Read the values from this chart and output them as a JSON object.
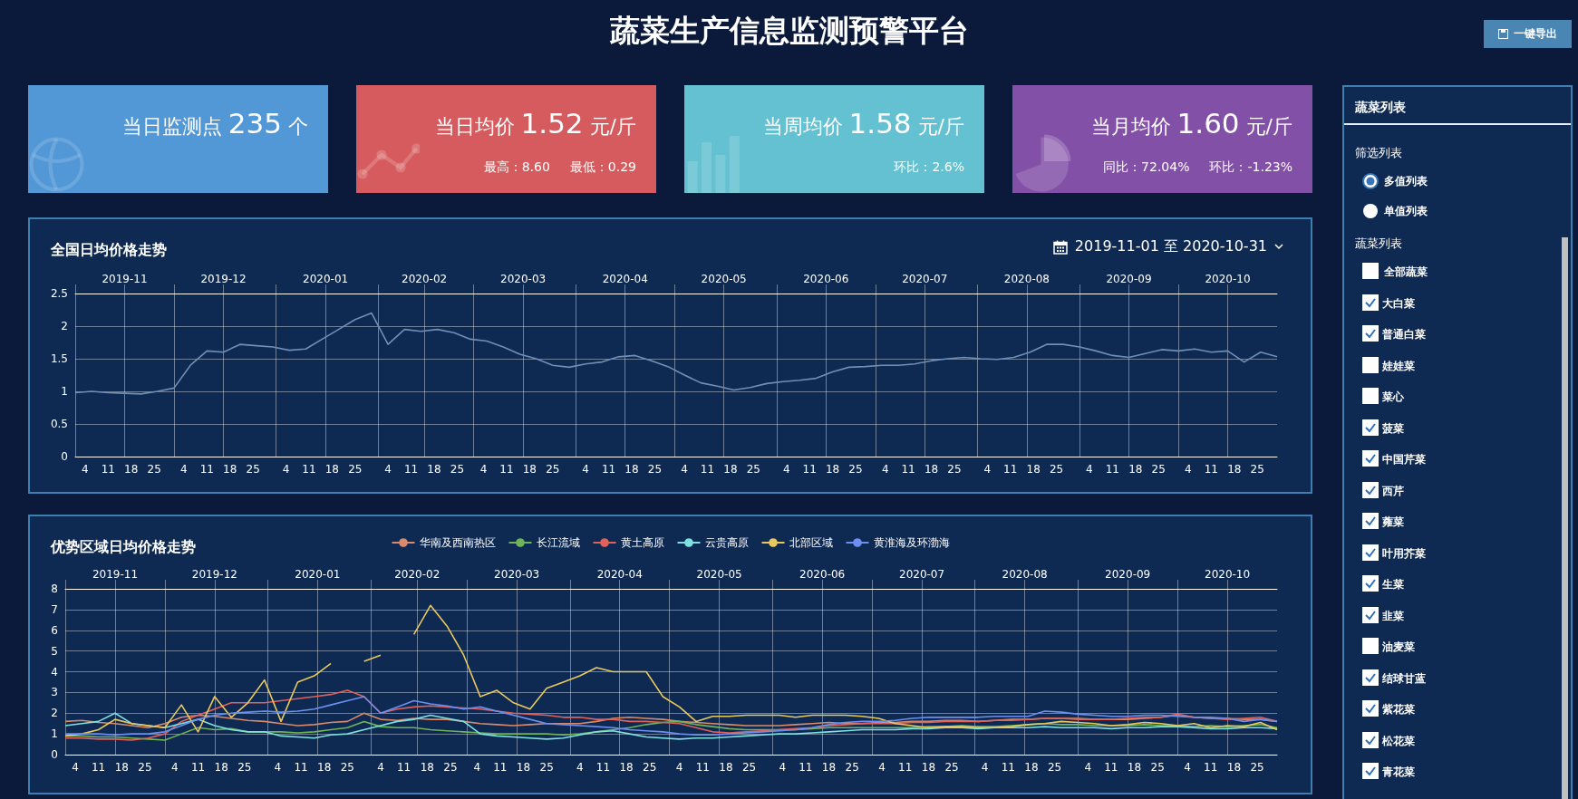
{
  "chart_data": [
    {
      "type": "other",
      "title": "蔬菜生产信息监测预警平台",
      "annotations": [
        "一键导出"
      ]
    },
    {
      "type": "other",
      "title": "当日监测点 235 个",
      "color": "#5297d6"
    },
    {
      "type": "other",
      "title": "当日均价 1.52 元/斤",
      "annotations": [
        "最高：8.60",
        "最低：0.29"
      ],
      "color": "#d65b5e"
    },
    {
      "type": "other",
      "title": "当周均价 1.58 元/斤",
      "annotations": [
        "环比：2.6%"
      ],
      "color": "#63c1d1"
    },
    {
      "type": "other",
      "title": "当月均价 1.60 元/斤",
      "annotations": [
        "同比：72.04%",
        "环比：-1.23%"
      ],
      "color": "#8350a8"
    },
    {
      "type": "line",
      "title": "全国日均价格走势",
      "annotations": [
        "2019-11-01 至 2020-10-31"
      ],
      "x": [
        "2019-11-01",
        "2019-11-06",
        "2019-11-11",
        "2019-11-16",
        "2019-11-21",
        "2019-11-26",
        "2019-12-01",
        "2019-12-06",
        "2019-12-11",
        "2019-12-16",
        "2019-12-21",
        "2019-12-26",
        "2019-12-31",
        "2020-01-05",
        "2020-01-10",
        "2020-01-15",
        "2020-01-20",
        "2020-01-25",
        "2020-01-30",
        "2020-02-04",
        "2020-02-09",
        "2020-02-14",
        "2020-02-19",
        "2020-02-24",
        "2020-02-29",
        "2020-03-05",
        "2020-03-10",
        "2020-03-15",
        "2020-03-20",
        "2020-03-25",
        "2020-03-30",
        "2020-04-04",
        "2020-04-09",
        "2020-04-14",
        "2020-04-19",
        "2020-04-24",
        "2020-04-29",
        "2020-05-04",
        "2020-05-09",
        "2020-05-14",
        "2020-05-19",
        "2020-05-24",
        "2020-05-29",
        "2020-06-03",
        "2020-06-08",
        "2020-06-13",
        "2020-06-18",
        "2020-06-23",
        "2020-06-28",
        "2020-07-03",
        "2020-07-08",
        "2020-07-13",
        "2020-07-18",
        "2020-07-23",
        "2020-07-28",
        "2020-08-02",
        "2020-08-07",
        "2020-08-12",
        "2020-08-17",
        "2020-08-22",
        "2020-08-27",
        "2020-09-01",
        "2020-09-06",
        "2020-09-11",
        "2020-09-16",
        "2020-09-21",
        "2020-09-26",
        "2020-10-01",
        "2020-10-06",
        "2020-10-11",
        "2020-10-16",
        "2020-10-21",
        "2020-10-26",
        "2020-10-31"
      ],
      "series": [
        {
          "color": "#6f8fb8",
          "values": [
            0.98,
            1.0,
            0.98,
            0.97,
            0.96,
            1.0,
            1.05,
            1.4,
            1.62,
            1.6,
            1.72,
            1.7,
            1.68,
            1.63,
            1.65,
            1.8,
            1.95,
            2.1,
            2.2,
            1.72,
            1.95,
            1.92,
            1.95,
            1.9,
            1.8,
            1.77,
            1.68,
            1.57,
            1.5,
            1.4,
            1.37,
            1.42,
            1.45,
            1.53,
            1.55,
            1.47,
            1.38,
            1.25,
            1.13,
            1.08,
            1.02,
            1.06,
            1.12,
            1.15,
            1.17,
            1.2,
            1.3,
            1.37,
            1.38,
            1.4,
            1.4,
            1.42,
            1.47,
            1.5,
            1.52,
            1.5,
            1.49,
            1.52,
            1.6,
            1.72,
            1.72,
            1.68,
            1.62,
            1.55,
            1.52,
            1.58,
            1.64,
            1.62,
            1.65,
            1.6,
            1.62,
            1.45,
            1.6,
            1.53
          ]
        }
      ],
      "xlim": [
        "2019-11-01",
        "2020-10-31"
      ],
      "xticks": [
        {
          "value": "2019-11-04",
          "label": "4"
        },
        {
          "value": "2019-11-11",
          "label": "11"
        },
        {
          "value": "2019-11-18",
          "label": "18"
        },
        {
          "value": "2019-11-25",
          "label": "25"
        },
        {
          "value": "2019-12-04",
          "label": "4"
        },
        {
          "value": "2019-12-11",
          "label": "11"
        },
        {
          "value": "2019-12-18",
          "label": "18"
        },
        {
          "value": "2019-12-25",
          "label": "25"
        },
        {
          "value": "2020-01-04",
          "label": "4"
        },
        {
          "value": "2020-01-11",
          "label": "11"
        },
        {
          "value": "2020-01-18",
          "label": "18"
        },
        {
          "value": "2020-01-25",
          "label": "25"
        },
        {
          "value": "2020-02-04",
          "label": "4"
        },
        {
          "value": "2020-02-11",
          "label": "11"
        },
        {
          "value": "2020-02-18",
          "label": "18"
        },
        {
          "value": "2020-02-25",
          "label": "25"
        },
        {
          "value": "2020-03-04",
          "label": "4"
        },
        {
          "value": "2020-03-11",
          "label": "11"
        },
        {
          "value": "2020-03-18",
          "label": "18"
        },
        {
          "value": "2020-03-25",
          "label": "25"
        },
        {
          "value": "2020-04-04",
          "label": "4"
        },
        {
          "value": "2020-04-11",
          "label": "11"
        },
        {
          "value": "2020-04-18",
          "label": "18"
        },
        {
          "value": "2020-04-25",
          "label": "25"
        },
        {
          "value": "2020-05-04",
          "label": "4"
        },
        {
          "value": "2020-05-11",
          "label": "11"
        },
        {
          "value": "2020-05-18",
          "label": "18"
        },
        {
          "value": "2020-05-25",
          "label": "25"
        },
        {
          "value": "2020-06-04",
          "label": "4"
        },
        {
          "value": "2020-06-11",
          "label": "11"
        },
        {
          "value": "2020-06-18",
          "label": "18"
        },
        {
          "value": "2020-06-25",
          "label": "25"
        },
        {
          "value": "2020-07-04",
          "label": "4"
        },
        {
          "value": "2020-07-11",
          "label": "11"
        },
        {
          "value": "2020-07-18",
          "label": "18"
        },
        {
          "value": "2020-07-25",
          "label": "25"
        },
        {
          "value": "2020-08-04",
          "label": "4"
        },
        {
          "value": "2020-08-11",
          "label": "11"
        },
        {
          "value": "2020-08-18",
          "label": "18"
        },
        {
          "value": "2020-08-25",
          "label": "25"
        },
        {
          "value": "2020-09-04",
          "label": "4"
        },
        {
          "value": "2020-09-11",
          "label": "11"
        },
        {
          "value": "2020-09-18",
          "label": "18"
        },
        {
          "value": "2020-09-25",
          "label": "25"
        },
        {
          "value": "2020-10-04",
          "label": "4"
        },
        {
          "value": "2020-10-11",
          "label": "11"
        },
        {
          "value": "2020-10-18",
          "label": "18"
        },
        {
          "value": "2020-10-25",
          "label": "25"
        }
      ],
      "x2lim": [
        "2019-11-01",
        "2020-10-31"
      ],
      "x2ticks": [
        {
          "value": "2019-11-01",
          "label": null
        },
        {
          "value": "2019-11-16",
          "label": "2019-11"
        },
        {
          "value": "2019-12-01",
          "label": null
        },
        {
          "value": "2019-12-16",
          "label": "2019-12"
        },
        {
          "value": "2020-01-01",
          "label": null
        },
        {
          "value": "2020-01-16",
          "label": "2020-01"
        },
        {
          "value": "2020-02-01",
          "label": null
        },
        {
          "value": "2020-02-15",
          "label": "2020-02"
        },
        {
          "value": "2020-03-01",
          "label": null
        },
        {
          "value": "2020-03-16",
          "label": "2020-03"
        },
        {
          "value": "2020-04-01",
          "label": null
        },
        {
          "value": "2020-04-16",
          "label": "2020-04"
        },
        {
          "value": "2020-05-01",
          "label": null
        },
        {
          "value": "2020-05-16",
          "label": "2020-05"
        },
        {
          "value": "2020-06-01",
          "label": null
        },
        {
          "value": "2020-06-16",
          "label": "2020-06"
        },
        {
          "value": "2020-07-01",
          "label": null
        },
        {
          "value": "2020-07-16",
          "label": "2020-07"
        },
        {
          "value": "2020-08-01",
          "label": null
        },
        {
          "value": "2020-08-16",
          "label": "2020-08"
        },
        {
          "value": "2020-09-01",
          "label": null
        },
        {
          "value": "2020-09-16",
          "label": "2020-09"
        },
        {
          "value": "2020-10-01",
          "label": null
        },
        {
          "value": "2020-10-16",
          "label": "2020-10"
        }
      ],
      "ylim": [
        0,
        2.5
      ],
      "yticks": [
        0,
        0.5,
        1,
        1.5,
        2,
        2.5
      ],
      "grid": true
    },
    {
      "type": "line",
      "title": "优势区域日均价格走势",
      "legend": "top",
      "x": [
        "2019-11-01",
        "2019-11-06",
        "2019-11-11",
        "2019-11-16",
        "2019-11-21",
        "2019-11-26",
        "2019-12-01",
        "2019-12-06",
        "2019-12-11",
        "2019-12-16",
        "2019-12-21",
        "2019-12-26",
        "2019-12-31",
        "2020-01-05",
        "2020-01-10",
        "2020-01-15",
        "2020-01-20",
        "2020-01-25",
        "2020-01-30",
        "2020-02-04",
        "2020-02-09",
        "2020-02-14",
        "2020-02-19",
        "2020-02-24",
        "2020-02-29",
        "2020-03-05",
        "2020-03-10",
        "2020-03-15",
        "2020-03-20",
        "2020-03-25",
        "2020-03-30",
        "2020-04-04",
        "2020-04-09",
        "2020-04-14",
        "2020-04-19",
        "2020-04-24",
        "2020-04-29",
        "2020-05-04",
        "2020-05-09",
        "2020-05-14",
        "2020-05-19",
        "2020-05-24",
        "2020-05-29",
        "2020-06-03",
        "2020-06-08",
        "2020-06-13",
        "2020-06-18",
        "2020-06-23",
        "2020-06-28",
        "2020-07-03",
        "2020-07-08",
        "2020-07-13",
        "2020-07-18",
        "2020-07-23",
        "2020-07-28",
        "2020-08-02",
        "2020-08-07",
        "2020-08-12",
        "2020-08-17",
        "2020-08-22",
        "2020-08-27",
        "2020-09-01",
        "2020-09-06",
        "2020-09-11",
        "2020-09-16",
        "2020-09-21",
        "2020-09-26",
        "2020-10-01",
        "2020-10-06",
        "2020-10-11",
        "2020-10-16",
        "2020-10-21",
        "2020-10-26",
        "2020-10-31"
      ],
      "series": [
        {
          "name": "华南及西南热区",
          "color": "#d98a6a",
          "values": [
            1.6,
            1.65,
            1.55,
            1.5,
            1.4,
            1.3,
            1.5,
            1.8,
            1.9,
            1.85,
            1.75,
            1.65,
            1.6,
            1.5,
            1.4,
            1.45,
            1.55,
            1.6,
            2.0,
            1.7,
            1.65,
            1.75,
            1.7,
            1.7,
            1.6,
            1.5,
            1.45,
            1.4,
            1.45,
            1.5,
            1.5,
            1.5,
            1.6,
            1.75,
            1.8,
            1.75,
            1.7,
            1.6,
            1.55,
            1.5,
            1.45,
            1.4,
            1.4,
            1.4,
            1.45,
            1.5,
            1.55,
            1.5,
            1.5,
            1.55,
            1.55,
            1.6,
            1.6,
            1.65,
            1.65,
            1.6,
            1.65,
            1.7,
            1.7,
            1.75,
            1.75,
            1.75,
            1.7,
            1.7,
            1.7,
            1.75,
            1.8,
            1.9,
            1.8,
            1.75,
            1.75,
            1.7,
            1.7,
            1.6
          ]
        },
        {
          "name": "长江流域",
          "color": "#6fb45a",
          "values": [
            0.9,
            0.9,
            0.85,
            0.85,
            0.8,
            0.75,
            0.7,
            1.0,
            1.3,
            1.2,
            1.25,
            1.1,
            1.1,
            1.1,
            1.05,
            1.1,
            1.2,
            1.3,
            1.6,
            1.35,
            1.3,
            1.3,
            1.2,
            1.15,
            1.1,
            1.05,
            1.0,
            1.0,
            1.0,
            1.0,
            0.95,
            1.0,
            1.1,
            1.2,
            1.3,
            1.45,
            1.55,
            1.6,
            1.45,
            1.35,
            1.25,
            1.2,
            1.2,
            1.2,
            1.2,
            1.25,
            1.3,
            1.3,
            1.3,
            1.3,
            1.3,
            1.3,
            1.35,
            1.35,
            1.4,
            1.35,
            1.35,
            1.4,
            1.45,
            1.5,
            1.45,
            1.45,
            1.4,
            1.4,
            1.4,
            1.45,
            1.4,
            1.4,
            1.35,
            1.4,
            1.35,
            1.4,
            1.45,
            1.3
          ]
        },
        {
          "name": "黄土高原",
          "color": "#e0605a",
          "values": [
            0.8,
            0.8,
            0.75,
            0.75,
            0.7,
            0.8,
            1.0,
            1.6,
            1.9,
            2.2,
            2.5,
            2.5,
            2.5,
            2.6,
            2.7,
            2.8,
            2.9,
            3.1,
            2.8,
            2.0,
            2.2,
            2.3,
            2.35,
            2.3,
            2.25,
            2.2,
            2.1,
            2.0,
            1.95,
            1.9,
            1.8,
            1.8,
            1.7,
            1.7,
            1.6,
            1.6,
            1.55,
            1.5,
            1.3,
            1.1,
            1.05,
            1.1,
            1.15,
            1.2,
            1.25,
            1.3,
            1.4,
            1.45,
            1.5,
            1.5,
            1.5,
            1.55,
            1.55,
            1.6,
            1.6,
            1.6,
            1.65,
            1.65,
            1.7,
            1.75,
            1.75,
            1.7,
            1.7,
            1.7,
            1.75,
            1.8,
            1.8,
            1.95,
            1.8,
            1.75,
            1.7,
            1.75,
            1.8,
            1.6
          ]
        },
        {
          "name": "云贵高原",
          "color": "#7fe0e0",
          "values": [
            1.4,
            1.5,
            1.6,
            2.0,
            1.5,
            1.4,
            1.3,
            1.5,
            1.7,
            1.4,
            1.2,
            1.1,
            1.1,
            0.9,
            0.85,
            0.8,
            0.95,
            1.0,
            1.2,
            1.4,
            1.6,
            1.7,
            1.9,
            1.75,
            1.6,
            1.0,
            0.9,
            0.85,
            0.8,
            0.75,
            0.8,
            0.95,
            1.1,
            1.15,
            1.0,
            0.85,
            0.8,
            0.75,
            0.8,
            0.8,
            0.85,
            0.9,
            0.95,
            1.0,
            1.0,
            1.05,
            1.1,
            1.15,
            1.2,
            1.2,
            1.2,
            1.25,
            1.25,
            1.3,
            1.3,
            1.25,
            1.3,
            1.3,
            1.3,
            1.35,
            1.3,
            1.3,
            1.3,
            1.25,
            1.3,
            1.3,
            1.35,
            1.35,
            1.3,
            1.25,
            1.25,
            1.3,
            1.3,
            1.25
          ]
        },
        {
          "name": "北部区域",
          "color": "#e8c95e",
          "values": [
            0.9,
            1.0,
            1.2,
            1.7,
            1.5,
            1.4,
            1.3,
            2.4,
            1.1,
            2.8,
            1.8,
            2.5,
            3.6,
            1.6,
            3.5,
            3.8,
            4.4,
            null,
            4.5,
            4.8,
            null,
            5.8,
            7.2,
            6.2,
            4.8,
            2.8,
            3.1,
            2.5,
            2.2,
            3.2,
            3.5,
            3.8,
            4.2,
            4.0,
            4.0,
            4.0,
            2.8,
            2.3,
            1.6,
            1.85,
            1.85,
            1.9,
            1.9,
            1.9,
            1.8,
            1.9,
            1.9,
            1.9,
            1.85,
            1.75,
            1.5,
            1.4,
            1.3,
            1.35,
            1.35,
            1.3,
            1.3,
            1.35,
            1.45,
            1.5,
            1.6,
            1.55,
            1.5,
            1.4,
            1.45,
            1.55,
            1.5,
            1.4,
            1.5,
            1.3,
            1.4,
            1.35,
            1.55,
            1.2
          ]
        },
        {
          "name": "黄淮海及环渤海",
          "color": "#6c8ff0",
          "values": [
            1.0,
            1.0,
            1.0,
            0.95,
            1.0,
            1.0,
            1.1,
            1.4,
            1.7,
            1.9,
            2.0,
            2.05,
            2.1,
            2.05,
            2.1,
            2.2,
            2.4,
            2.6,
            2.8,
            2.0,
            2.3,
            2.6,
            2.45,
            2.35,
            2.2,
            2.3,
            2.1,
            1.9,
            1.7,
            1.5,
            1.45,
            1.4,
            1.35,
            1.3,
            1.2,
            1.15,
            1.1,
            1.0,
            0.95,
            0.95,
            1.0,
            1.05,
            1.1,
            1.15,
            1.2,
            1.3,
            1.45,
            1.55,
            1.6,
            1.6,
            1.65,
            1.75,
            1.8,
            1.8,
            1.8,
            1.8,
            1.85,
            1.85,
            1.85,
            2.1,
            2.05,
            1.95,
            1.9,
            1.85,
            1.85,
            1.9,
            1.9,
            1.85,
            1.8,
            1.8,
            1.75,
            1.6,
            1.7,
            1.6
          ]
        }
      ],
      "xlim": [
        "2019-11-01",
        "2020-10-31"
      ],
      "xticks": [
        {
          "value": "2019-11-04",
          "label": "4"
        },
        {
          "value": "2019-11-11",
          "label": "11"
        },
        {
          "value": "2019-11-18",
          "label": "18"
        },
        {
          "value": "2019-11-25",
          "label": "25"
        },
        {
          "value": "2019-12-04",
          "label": "4"
        },
        {
          "value": "2019-12-11",
          "label": "11"
        },
        {
          "value": "2019-12-18",
          "label": "18"
        },
        {
          "value": "2019-12-25",
          "label": "25"
        },
        {
          "value": "2020-01-04",
          "label": "4"
        },
        {
          "value": "2020-01-11",
          "label": "11"
        },
        {
          "value": "2020-01-18",
          "label": "18"
        },
        {
          "value": "2020-01-25",
          "label": "25"
        },
        {
          "value": "2020-02-04",
          "label": "4"
        },
        {
          "value": "2020-02-11",
          "label": "11"
        },
        {
          "value": "2020-02-18",
          "label": "18"
        },
        {
          "value": "2020-02-25",
          "label": "25"
        },
        {
          "value": "2020-03-04",
          "label": "4"
        },
        {
          "value": "2020-03-11",
          "label": "11"
        },
        {
          "value": "2020-03-18",
          "label": "18"
        },
        {
          "value": "2020-03-25",
          "label": "25"
        },
        {
          "value": "2020-04-04",
          "label": "4"
        },
        {
          "value": "2020-04-11",
          "label": "11"
        },
        {
          "value": "2020-04-18",
          "label": "18"
        },
        {
          "value": "2020-04-25",
          "label": "25"
        },
        {
          "value": "2020-05-04",
          "label": "4"
        },
        {
          "value": "2020-05-11",
          "label": "11"
        },
        {
          "value": "2020-05-18",
          "label": "18"
        },
        {
          "value": "2020-05-25",
          "label": "25"
        },
        {
          "value": "2020-06-04",
          "label": "4"
        },
        {
          "value": "2020-06-11",
          "label": "11"
        },
        {
          "value": "2020-06-18",
          "label": "18"
        },
        {
          "value": "2020-06-25",
          "label": "25"
        },
        {
          "value": "2020-07-04",
          "label": "4"
        },
        {
          "value": "2020-07-11",
          "label": "11"
        },
        {
          "value": "2020-07-18",
          "label": "18"
        },
        {
          "value": "2020-07-25",
          "label": "25"
        },
        {
          "value": "2020-08-04",
          "label": "4"
        },
        {
          "value": "2020-08-11",
          "label": "11"
        },
        {
          "value": "2020-08-18",
          "label": "18"
        },
        {
          "value": "2020-08-25",
          "label": "25"
        },
        {
          "value": "2020-09-04",
          "label": "4"
        },
        {
          "value": "2020-09-11",
          "label": "11"
        },
        {
          "value": "2020-09-18",
          "label": "18"
        },
        {
          "value": "2020-09-25",
          "label": "25"
        },
        {
          "value": "2020-10-04",
          "label": "4"
        },
        {
          "value": "2020-10-11",
          "label": "11"
        },
        {
          "value": "2020-10-18",
          "label": "18"
        },
        {
          "value": "2020-10-25",
          "label": "25"
        }
      ],
      "x2lim": [
        "2019-11-01",
        "2020-10-31"
      ],
      "x2ticks": [
        {
          "value": "2019-11-01",
          "label": null
        },
        {
          "value": "2019-11-16",
          "label": "2019-11"
        },
        {
          "value": "2019-12-01",
          "label": null
        },
        {
          "value": "2019-12-16",
          "label": "2019-12"
        },
        {
          "value": "2020-01-01",
          "label": null
        },
        {
          "value": "2020-01-16",
          "label": "2020-01"
        },
        {
          "value": "2020-02-01",
          "label": null
        },
        {
          "value": "2020-02-15",
          "label": "2020-02"
        },
        {
          "value": "2020-03-01",
          "label": null
        },
        {
          "value": "2020-03-16",
          "label": "2020-03"
        },
        {
          "value": "2020-04-01",
          "label": null
        },
        {
          "value": "2020-04-16",
          "label": "2020-04"
        },
        {
          "value": "2020-05-01",
          "label": null
        },
        {
          "value": "2020-05-16",
          "label": "2020-05"
        },
        {
          "value": "2020-06-01",
          "label": null
        },
        {
          "value": "2020-06-16",
          "label": "2020-06"
        },
        {
          "value": "2020-07-01",
          "label": null
        },
        {
          "value": "2020-07-16",
          "label": "2020-07"
        },
        {
          "value": "2020-08-01",
          "label": null
        },
        {
          "value": "2020-08-16",
          "label": "2020-08"
        },
        {
          "value": "2020-09-01",
          "label": null
        },
        {
          "value": "2020-09-16",
          "label": "2020-09"
        },
        {
          "value": "2020-10-01",
          "label": null
        },
        {
          "value": "2020-10-16",
          "label": "2020-10"
        }
      ],
      "ylim": [
        0,
        8
      ],
      "yticks": [
        0,
        1,
        2,
        3,
        4,
        5,
        6,
        7,
        8
      ],
      "grid": true
    },
    {
      "type": "other",
      "title": "蔬菜列表",
      "annotations": [
        "筛选列表",
        "多值列表",
        "单值列表",
        "蔬菜列表",
        "全部蔬菜",
        "大白菜",
        "普通白菜",
        "娃娃菜",
        "菜心",
        "菠菜",
        "中国芹菜",
        "西芹",
        "蕹菜",
        "叶用芥菜",
        "生菜",
        "韭菜",
        "油麦菜",
        "结球甘蓝",
        "紫花菜",
        "松花菜",
        "青花菜"
      ]
    }
  ]
}
